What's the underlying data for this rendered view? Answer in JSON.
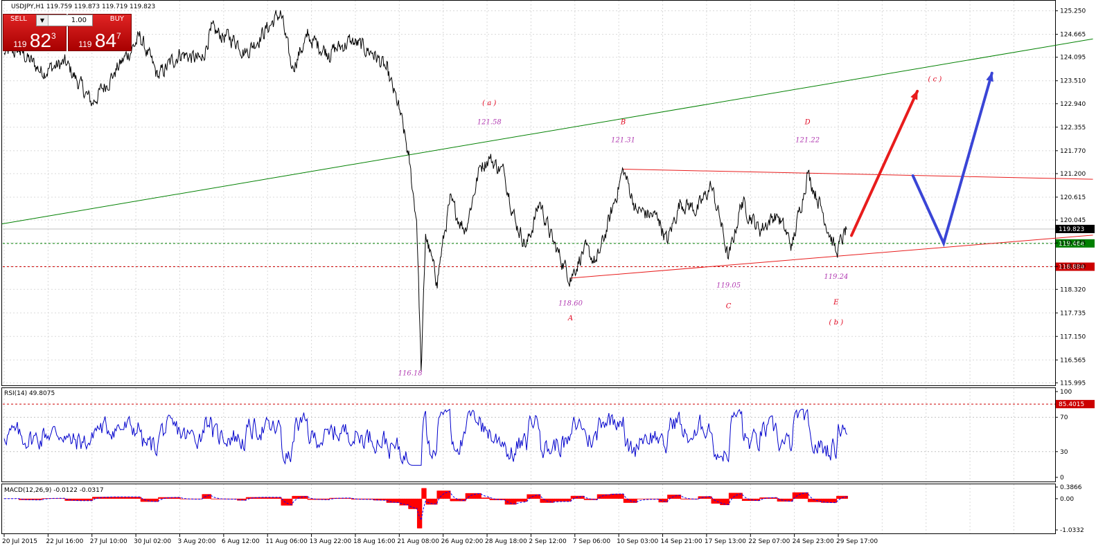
{
  "symbol_header": "USDJPY,H1  119.759 119.873 119.719 119.823",
  "trade_panel": {
    "sell_label": "SELL",
    "buy_label": "BUY",
    "lot": "1.00",
    "sell_price": {
      "prefix": "119",
      "main": "82",
      "sup": "3"
    },
    "buy_price": {
      "prefix": "119",
      "main": "84",
      "sup": "7"
    }
  },
  "colors": {
    "price": "#000000",
    "green_line": "#008000",
    "red_line": "#e81c1c",
    "red_arrow": "#e81c1c",
    "blue_arrow": "#3a45d6",
    "rsi": "#0000cc",
    "macd_hist": "#ff0000",
    "macd_signal": "#0000ff",
    "level_green": "#008000",
    "level_red": "#cc0000"
  },
  "chart_data": [
    {
      "type": "line",
      "title": "USDJPY,H1",
      "y_ticks": [
        "125.250",
        "124.665",
        "124.095",
        "123.510",
        "122.940",
        "122.355",
        "121.770",
        "121.200",
        "120.615",
        "120.045",
        "119.475",
        "118.890",
        "118.320",
        "117.735",
        "117.150",
        "116.565",
        "115.995"
      ],
      "ylim": [
        115.95,
        125.45
      ],
      "x_ticks": [
        "20 Jul 2015",
        "22 Jul 16:00",
        "27 Jul 10:00",
        "30 Jul 02:00",
        "3 Aug 20:00",
        "6 Aug 12:00",
        "11 Aug 06:00",
        "13 Aug 22:00",
        "18 Aug 16:00",
        "21 Aug 08:00",
        "26 Aug 02:00",
        "28 Aug 18:00",
        "2 Sep 12:00",
        "7 Sep 06:00",
        "10 Sep 03:00",
        "14 Sep 21:00",
        "17 Sep 13:00",
        "22 Sep 07:00",
        "24 Sep 23:00",
        "29 Sep 17:00"
      ],
      "price_key_points": [
        {
          "t": 0.0,
          "v": 124.2
        },
        {
          "t": 0.35,
          "v": 124.25
        },
        {
          "t": 0.85,
          "v": 123.75
        },
        {
          "t": 1.4,
          "v": 123.95
        },
        {
          "t": 2.0,
          "v": 122.95
        },
        {
          "t": 2.5,
          "v": 123.7
        },
        {
          "t": 3.1,
          "v": 124.6
        },
        {
          "t": 3.5,
          "v": 123.6
        },
        {
          "t": 4.0,
          "v": 124.2
        },
        {
          "t": 4.5,
          "v": 124.0
        },
        {
          "t": 4.7,
          "v": 124.75
        },
        {
          "t": 5.3,
          "v": 124.5
        },
        {
          "t": 5.5,
          "v": 124.2
        },
        {
          "t": 5.9,
          "v": 124.7
        },
        {
          "t": 6.3,
          "v": 125.2
        },
        {
          "t": 6.55,
          "v": 123.8
        },
        {
          "t": 6.9,
          "v": 124.6
        },
        {
          "t": 7.4,
          "v": 124.2
        },
        {
          "t": 7.9,
          "v": 124.5
        },
        {
          "t": 8.4,
          "v": 124.2
        },
        {
          "t": 8.7,
          "v": 123.8
        },
        {
          "t": 9.0,
          "v": 122.8
        },
        {
          "t": 9.2,
          "v": 121.7
        },
        {
          "t": 9.4,
          "v": 120.0
        },
        {
          "t": 9.5,
          "v": 116.18
        },
        {
          "t": 9.6,
          "v": 119.7
        },
        {
          "t": 9.85,
          "v": 118.5
        },
        {
          "t": 10.15,
          "v": 120.5
        },
        {
          "t": 10.5,
          "v": 119.8
        },
        {
          "t": 10.85,
          "v": 121.4
        },
        {
          "t": 11.05,
          "v": 121.58
        },
        {
          "t": 11.4,
          "v": 121.2
        },
        {
          "t": 11.65,
          "v": 120.0
        },
        {
          "t": 11.9,
          "v": 119.4
        },
        {
          "t": 12.2,
          "v": 120.5
        },
        {
          "t": 12.5,
          "v": 119.5
        },
        {
          "t": 12.9,
          "v": 118.6
        },
        {
          "t": 13.2,
          "v": 119.3
        },
        {
          "t": 13.5,
          "v": 119.0
        },
        {
          "t": 13.8,
          "v": 120.1
        },
        {
          "t": 14.1,
          "v": 121.31
        },
        {
          "t": 14.4,
          "v": 120.3
        },
        {
          "t": 14.9,
          "v": 120.1
        },
        {
          "t": 15.1,
          "v": 119.5
        },
        {
          "t": 15.4,
          "v": 120.5
        },
        {
          "t": 15.8,
          "v": 120.3
        },
        {
          "t": 16.1,
          "v": 120.9
        },
        {
          "t": 16.3,
          "v": 120.1
        },
        {
          "t": 16.5,
          "v": 119.05
        },
        {
          "t": 16.8,
          "v": 120.5
        },
        {
          "t": 17.2,
          "v": 119.8
        },
        {
          "t": 17.6,
          "v": 120.2
        },
        {
          "t": 17.95,
          "v": 119.4
        },
        {
          "t": 18.3,
          "v": 121.22
        },
        {
          "t": 18.6,
          "v": 120.4
        },
        {
          "t": 18.95,
          "v": 119.24
        },
        {
          "t": 19.2,
          "v": 119.82
        }
      ],
      "annotations": [
        {
          "text": "( a )",
          "kind": "wave",
          "v": 122.9
        },
        {
          "text": "121.58",
          "kind": "price",
          "v": 122.43
        },
        {
          "text": "B",
          "kind": "wave",
          "v": 122.43
        },
        {
          "text": "121.31",
          "kind": "price",
          "v": 121.98
        },
        {
          "text": "D",
          "kind": "wave",
          "v": 122.43
        },
        {
          "text": "121.22",
          "kind": "price",
          "v": 121.98
        },
        {
          "text": "( c )",
          "kind": "wave",
          "v": 123.5
        },
        {
          "text": "118.60",
          "kind": "price",
          "v": 117.92
        },
        {
          "text": "A",
          "kind": "wave",
          "v": 117.55
        },
        {
          "text": "119.05",
          "kind": "price",
          "v": 118.37
        },
        {
          "text": "C",
          "kind": "wave",
          "v": 117.85
        },
        {
          "text": "119.24",
          "kind": "price",
          "v": 118.58
        },
        {
          "text": "E",
          "kind": "wave",
          "v": 117.95
        },
        {
          "text": "( b )",
          "kind": "wave",
          "v": 117.45
        },
        {
          "text": "116.18",
          "kind": "price",
          "v": 116.18
        }
      ],
      "levels": [
        {
          "label": "119.823",
          "value": 119.823,
          "style": "price"
        },
        {
          "label": "119.464",
          "value": 119.464,
          "style": "green"
        },
        {
          "label": "118.884",
          "value": 118.884,
          "style": "red"
        }
      ]
    },
    {
      "type": "line",
      "title": "RSI(14) 49.8075",
      "y_ticks": [
        "100",
        "70",
        "30",
        "0"
      ],
      "ylim": [
        0,
        100
      ],
      "level_label": "85.4015",
      "level_value": 85.4,
      "last_value": 49.8075
    },
    {
      "type": "bar",
      "title": "MACD(12,26,9) -0.0122 -0.0317",
      "y_ticks": [
        "0.3866",
        "0.00",
        "-1.0332"
      ],
      "ylim": [
        -1.0332,
        0.3866
      ]
    }
  ]
}
